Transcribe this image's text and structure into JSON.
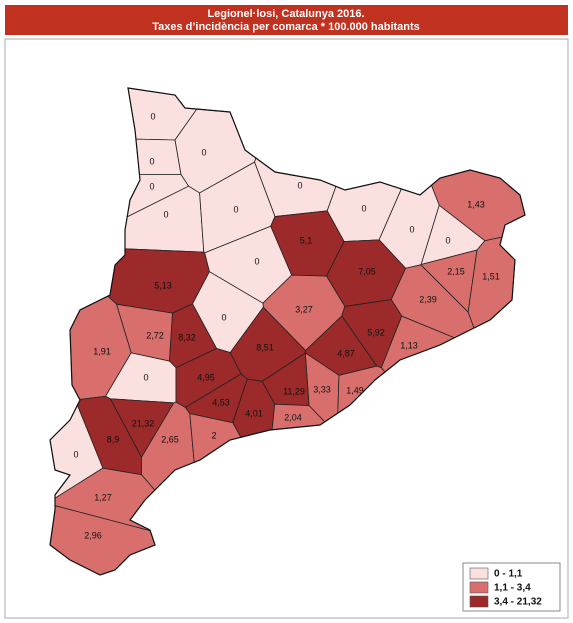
{
  "title": "Legionel·losi, Catalunya 2016.",
  "subtitle": "Taxes d’incidència per comarca * 100.000 habitants",
  "regions": {
    "values": [
      0,
      0,
      0,
      0,
      0,
      0,
      0,
      0,
      1.43,
      5.1,
      0,
      0,
      0,
      7.05,
      2.15,
      1.51,
      5.13,
      2.39,
      3.27,
      0,
      2.72,
      8.32,
      5.92,
      1.91,
      8.51,
      1.13,
      4.87,
      0,
      4.95,
      3.33,
      11.29,
      1.49,
      4.53,
      4.01,
      2.04,
      21.32,
      8.9,
      2.65,
      2,
      0,
      1.27,
      2.96
    ],
    "value_labels": [
      "0",
      "0",
      "0",
      "0",
      "0",
      "0",
      "0",
      "0",
      "1,43",
      "5,1",
      "0",
      "0",
      "0",
      "7,05",
      "2,15",
      "1,51",
      "5,13",
      "2,39",
      "3,27",
      "0",
      "2,72",
      "8,32",
      "5,92",
      "1,91",
      "8,51",
      "1,13",
      "4,87",
      "0",
      "4,95",
      "3,33",
      "11,29",
      "1,49",
      "4,53",
      "4,01",
      "2,04",
      "21,32",
      "8,9",
      "2,65",
      "2",
      "0",
      "1,27",
      "2,96"
    ]
  },
  "legend": [
    {
      "min": 0,
      "max": 1.1,
      "label": "0 - 1,1",
      "color": "#fbe0e0"
    },
    {
      "min": 1.1,
      "max": 3.4,
      "label": "1,1 - 3,4",
      "color": "#d86f6d"
    },
    {
      "min": 3.4,
      "max": 21.32,
      "label": "3,4 - 21,32",
      "color": "#9c2a2a"
    }
  ]
}
